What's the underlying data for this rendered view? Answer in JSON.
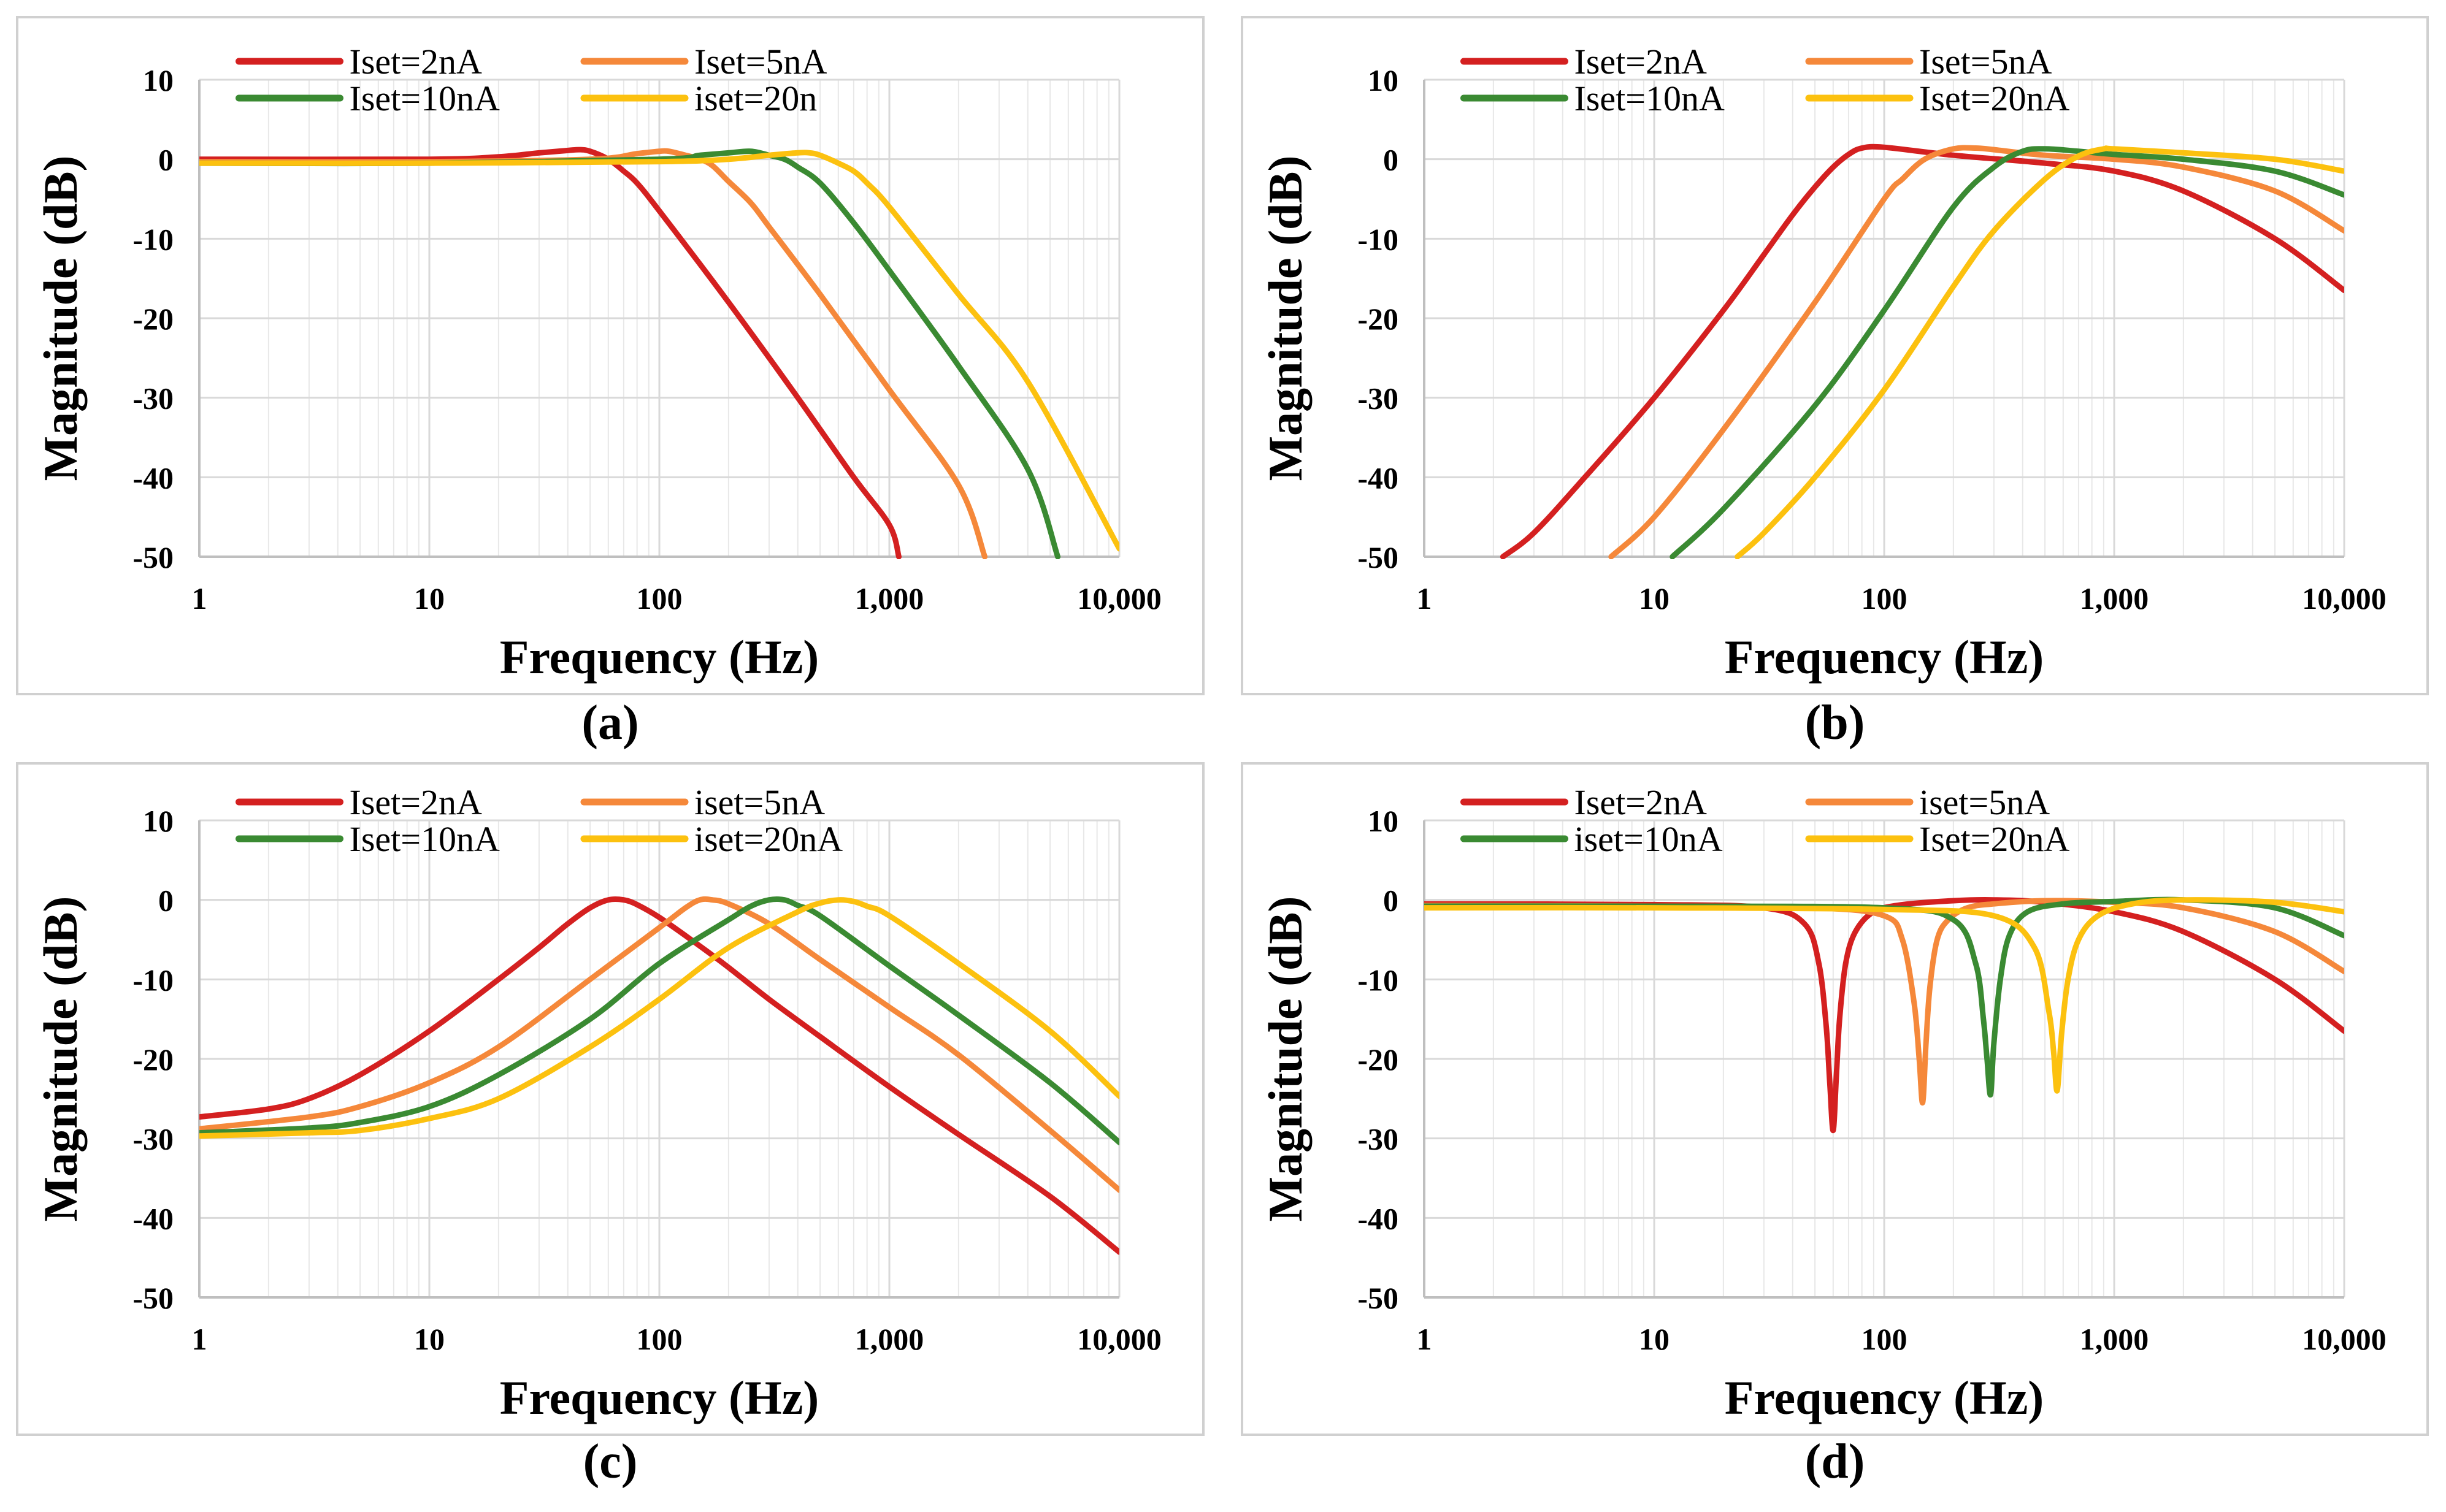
{
  "figure": {
    "panel_labels": [
      "(a)",
      "(b)",
      "(c)",
      "(d)"
    ]
  },
  "colors": {
    "red": "#d42020",
    "orange": "#f5883a",
    "green": "#3a8a32",
    "yellow": "#fcc10f",
    "grid": "#d9d9d9",
    "frame": "#d0d0d0"
  },
  "chart_data": [
    {
      "type": "line",
      "id": "a",
      "xscale": "log",
      "xlim": [
        1,
        10000
      ],
      "ylim": [
        -50,
        10
      ],
      "xlabel": "Frequency (Hz)",
      "ylabel": "Magnitude (dB)",
      "xticks": [
        "1",
        "10",
        "100",
        "1,000",
        "10,000"
      ],
      "yticks": [
        "10",
        "0",
        "-10",
        "-20",
        "-30",
        "-40",
        "-50"
      ],
      "series": [
        {
          "name": "Iset=2nA",
          "color": "red",
          "x": [
            1,
            10,
            20,
            30,
            40,
            45,
            50,
            60,
            70,
            80,
            100,
            200,
            400,
            700,
            1000,
            1100
          ],
          "y": [
            0,
            0,
            0.3,
            0.8,
            1.1,
            1.2,
            1,
            0,
            -1.5,
            -3,
            -6.5,
            -18,
            -30,
            -40,
            -46,
            -50
          ]
        },
        {
          "name": "Iset=5nA",
          "color": "orange",
          "x": [
            1,
            10,
            50,
            80,
            100,
            110,
            130,
            150,
            170,
            200,
            250,
            300,
            500,
            1000,
            2000,
            2600
          ],
          "y": [
            -0.3,
            -0.3,
            0,
            0.7,
            1,
            1,
            0.5,
            0,
            -0.8,
            -2.8,
            -5.5,
            -8.5,
            -17,
            -29,
            -41,
            -50
          ]
        },
        {
          "name": "Iset=10nA",
          "color": "green",
          "x": [
            1,
            10,
            100,
            150,
            200,
            250,
            300,
            350,
            400,
            500,
            700,
            1000,
            2000,
            4000,
            5400
          ],
          "y": [
            -0.5,
            -0.5,
            0,
            0.5,
            0.8,
            1,
            0.5,
            0,
            -1,
            -3,
            -8,
            -14,
            -26,
            -39,
            -50
          ]
        },
        {
          "name": "iset=20n",
          "color": "yellow",
          "x": [
            1,
            10,
            100,
            200,
            300,
            400,
            450,
            500,
            600,
            700,
            800,
            1000,
            2000,
            4000,
            10000
          ],
          "y": [
            -0.5,
            -0.5,
            -0.3,
            0,
            0.5,
            0.8,
            0.8,
            0.5,
            -0.5,
            -1.5,
            -3,
            -6,
            -17,
            -28,
            -49
          ]
        }
      ]
    },
    {
      "type": "line",
      "id": "b",
      "xscale": "log",
      "xlim": [
        1,
        10000
      ],
      "ylim": [
        -50,
        10
      ],
      "xlabel": "Frequency (Hz)",
      "ylabel": "Magnitude (dB)",
      "xticks": [
        "1",
        "10",
        "100",
        "1,000",
        "10,000"
      ],
      "yticks": [
        "10",
        "0",
        "-10",
        "-20",
        "-30",
        "-40",
        "-50"
      ],
      "series": [
        {
          "name": "Iset=2nA",
          "color": "red",
          "x": [
            2.2,
            3,
            5,
            10,
            20,
            30,
            40,
            50,
            60,
            70,
            80,
            100,
            200,
            500,
            1000,
            2000,
            5000,
            10000
          ],
          "y": [
            -50,
            -47,
            -40,
            -30,
            -19,
            -12,
            -7,
            -3.5,
            -1,
            0.6,
            1.4,
            1.5,
            0.5,
            -0.5,
            -1.5,
            -4,
            -10,
            -16.5
          ]
        },
        {
          "name": "Iset=5nA",
          "color": "orange",
          "x": [
            6.5,
            10,
            20,
            50,
            100,
            120,
            150,
            200,
            250,
            300,
            500,
            1000,
            2000,
            5000,
            10000
          ],
          "y": [
            -50,
            -45,
            -34,
            -18,
            -5,
            -2.5,
            0,
            1.3,
            1.4,
            1.2,
            0.5,
            0,
            -1,
            -4,
            -9
          ]
        },
        {
          "name": "Iset=10nA",
          "color": "green",
          "x": [
            12,
            20,
            50,
            100,
            200,
            300,
            400,
            500,
            700,
            1000,
            2000,
            5000,
            10000
          ],
          "y": [
            -50,
            -44,
            -31,
            -19,
            -6,
            -1,
            1,
            1.3,
            1,
            0.6,
            0,
            -1.5,
            -4.5
          ]
        },
        {
          "name": "Iset=20nA",
          "color": "yellow",
          "x": [
            23,
            30,
            50,
            100,
            200,
            300,
            500,
            700,
            900,
            1000,
            2000,
            5000,
            10000
          ],
          "y": [
            -50,
            -47,
            -40,
            -29,
            -16,
            -9,
            -2.5,
            0.4,
            1.3,
            1.3,
            0.8,
            0,
            -1.5
          ]
        }
      ]
    },
    {
      "type": "line",
      "id": "c",
      "xscale": "log",
      "xlim": [
        1,
        10000
      ],
      "ylim": [
        -50,
        10
      ],
      "xlabel": "Frequency (Hz)",
      "ylabel": "Magnitude (dB)",
      "xticks": [
        "1",
        "10",
        "100",
        "1,000",
        "10,000"
      ],
      "yticks": [
        "10",
        "0",
        "-10",
        "-20",
        "-30",
        "-40",
        "-50"
      ],
      "series": [
        {
          "name": "Iset=2nA",
          "color": "red",
          "x": [
            1,
            2,
            3,
            5,
            10,
            20,
            30,
            40,
            50,
            60,
            70,
            80,
            100,
            150,
            200,
            300,
            500,
            1000,
            2000,
            5000,
            10000
          ],
          "y": [
            -27.3,
            -26.3,
            -25,
            -22,
            -16.5,
            -10,
            -6,
            -3,
            -1,
            0,
            0,
            -0.6,
            -2.2,
            -5.8,
            -8.5,
            -12.5,
            -17.2,
            -23.5,
            -29.5,
            -37.3,
            -44.3
          ]
        },
        {
          "name": "iset=5nA",
          "color": "orange",
          "x": [
            1,
            3,
            5,
            10,
            20,
            50,
            100,
            130,
            150,
            170,
            200,
            300,
            500,
            1000,
            2000,
            5000,
            10000
          ],
          "y": [
            -28.8,
            -27.3,
            -26,
            -23,
            -18.5,
            -10,
            -3.5,
            -1,
            0,
            0,
            -0.5,
            -3,
            -7.5,
            -13.5,
            -19.5,
            -29,
            -36.5
          ]
        },
        {
          "name": "Iset=10nA",
          "color": "green",
          "x": [
            1,
            3,
            5,
            10,
            20,
            50,
            100,
            200,
            250,
            300,
            350,
            400,
            500,
            1000,
            2000,
            5000,
            10000
          ],
          "y": [
            -29.3,
            -28.7,
            -28,
            -26,
            -22,
            -15,
            -8,
            -2.5,
            -0.8,
            0,
            0,
            -0.7,
            -2,
            -8.3,
            -14.5,
            -23,
            -30.5
          ]
        },
        {
          "name": "iset=20nA",
          "color": "yellow",
          "x": [
            1,
            3,
            5,
            10,
            20,
            50,
            100,
            200,
            400,
            500,
            600,
            700,
            800,
            1000,
            2000,
            5000,
            10000
          ],
          "y": [
            -29.7,
            -29.3,
            -29,
            -27.5,
            -25,
            -18.5,
            -12.5,
            -6,
            -1.5,
            -0.4,
            0,
            -0.2,
            -0.8,
            -2,
            -8,
            -16.5,
            -24.7
          ]
        }
      ]
    },
    {
      "type": "line",
      "id": "d",
      "xscale": "log",
      "xlim": [
        1,
        10000
      ],
      "ylim": [
        -50,
        10
      ],
      "xlabel": "Frequency (Hz)",
      "ylabel": "Magnitude (dB)",
      "xticks": [
        "1",
        "10",
        "100",
        "1,000",
        "10,000"
      ],
      "yticks": [
        "10",
        "0",
        "-10",
        "-20",
        "-30",
        "-40",
        "-50"
      ],
      "series": [
        {
          "name": "Iset=2nA",
          "color": "red",
          "x": [
            1,
            10,
            30,
            45,
            52,
            56,
            58,
            60,
            62,
            64,
            68,
            75,
            90,
            120,
            200,
            300,
            500,
            1000,
            2000,
            5000,
            10000
          ],
          "y": [
            -0.5,
            -0.6,
            -1,
            -3,
            -8,
            -16,
            -23,
            -29,
            -22,
            -15,
            -8,
            -4,
            -1.5,
            -0.6,
            -0.1,
            0,
            -0.3,
            -1.5,
            -4,
            -10,
            -16.5
          ]
        },
        {
          "name": "iset=5nA",
          "color": "orange",
          "x": [
            1,
            10,
            50,
            100,
            120,
            135,
            142,
            147,
            152,
            158,
            170,
            190,
            230,
            300,
            500,
            1000,
            2000,
            5000,
            10000
          ],
          "y": [
            -0.7,
            -0.8,
            -1,
            -2,
            -5,
            -13,
            -20,
            -25.5,
            -18,
            -11,
            -5,
            -2.5,
            -1,
            -0.5,
            -0.1,
            -0.3,
            -1,
            -4,
            -9
          ]
        },
        {
          "name": "iset=10nA",
          "color": "green",
          "x": [
            1,
            10,
            100,
            200,
            250,
            270,
            280,
            290,
            300,
            320,
            350,
            420,
            600,
            1000,
            2000,
            5000,
            10000
          ],
          "y": [
            -0.8,
            -0.8,
            -1,
            -2.5,
            -8,
            -15,
            -20,
            -24.5,
            -18,
            -10,
            -4.5,
            -1.5,
            -0.5,
            -0.2,
            0,
            -1,
            -4.5
          ]
        },
        {
          "name": "Iset=20nA",
          "color": "yellow",
          "x": [
            1,
            10,
            100,
            300,
            450,
            520,
            545,
            565,
            590,
            630,
            700,
            850,
            1200,
            2000,
            5000,
            10000
          ],
          "y": [
            -1,
            -1,
            -1.2,
            -2,
            -6,
            -14,
            -19,
            -24,
            -17,
            -10,
            -5,
            -2,
            -0.5,
            0,
            -0.3,
            -1.5
          ]
        }
      ]
    }
  ]
}
